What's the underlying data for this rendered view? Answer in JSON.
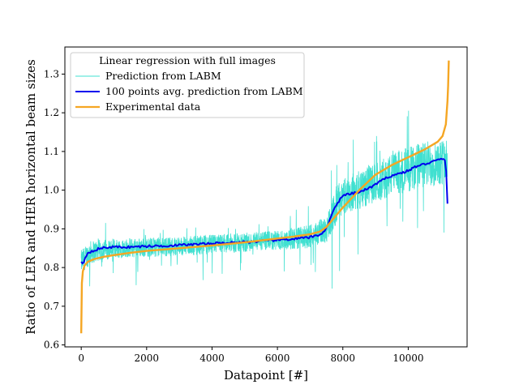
{
  "chart_data": {
    "type": "line",
    "title": "",
    "xlabel": "Datapoint [#]",
    "ylabel": "Ratio of LER and HER horizontal beam sizes",
    "xlim": [
      -500,
      11800
    ],
    "ylim": [
      0.595,
      1.37
    ],
    "xticks": [
      0,
      2000,
      4000,
      6000,
      8000,
      10000
    ],
    "xtick_labels": [
      "0",
      "2000",
      "4000",
      "6000",
      "8000",
      "10000"
    ],
    "yticks": [
      0.6,
      0.7,
      0.8,
      0.9,
      1.0,
      1.1,
      1.2,
      1.3
    ],
    "ytick_labels": [
      "0.6",
      "0.7",
      "0.8",
      "0.9",
      "1.0",
      "1.1",
      "1.2",
      "1.3"
    ],
    "grid": false,
    "legend": {
      "title": "Linear regression with full images",
      "position": "top-left"
    },
    "series": [
      {
        "name": "Prediction from LABM",
        "color": "#40e0d0",
        "style": "noisy-thin",
        "n_points": 11250,
        "x": [
          0,
          300,
          1000,
          2000,
          3000,
          4000,
          5000,
          6000,
          7000,
          7500,
          7800,
          8000,
          8500,
          9000,
          9500,
          10000,
          10500,
          11000,
          11200
        ],
        "y": [
          0.815,
          0.84,
          0.85,
          0.852,
          0.855,
          0.86,
          0.865,
          0.87,
          0.88,
          0.9,
          0.96,
          0.985,
          1.0,
          1.02,
          1.04,
          1.055,
          1.065,
          1.075,
          1.07
        ],
        "spread": [
          0.03,
          0.03,
          0.025,
          0.025,
          0.025,
          0.025,
          0.025,
          0.025,
          0.03,
          0.035,
          0.05,
          0.05,
          0.05,
          0.05,
          0.055,
          0.06,
          0.06,
          0.06,
          0.06
        ]
      },
      {
        "name": "100 points avg. prediction from LABM",
        "color": "#0000ee",
        "style": "line",
        "x": [
          0,
          60,
          120,
          200,
          400,
          600,
          800,
          1000,
          1500,
          2000,
          2500,
          3000,
          3500,
          4000,
          4500,
          5000,
          5500,
          6000,
          6500,
          7000,
          7300,
          7500,
          7600,
          7700,
          7800,
          7900,
          8000,
          8200,
          8400,
          8600,
          8800,
          9000,
          9200,
          9400,
          9600,
          9800,
          10000,
          10200,
          10400,
          10600,
          10800,
          11000,
          11100,
          11150,
          11200
        ],
        "y": [
          0.815,
          0.808,
          0.825,
          0.838,
          0.845,
          0.85,
          0.852,
          0.853,
          0.853,
          0.855,
          0.856,
          0.858,
          0.86,
          0.862,
          0.864,
          0.866,
          0.868,
          0.871,
          0.874,
          0.878,
          0.885,
          0.9,
          0.925,
          0.945,
          0.96,
          0.975,
          0.985,
          0.99,
          0.993,
          0.998,
          1.005,
          1.015,
          1.025,
          1.035,
          1.04,
          1.045,
          1.05,
          1.06,
          1.065,
          1.07,
          1.075,
          1.08,
          1.082,
          1.07,
          0.965
        ]
      },
      {
        "name": "Experimental data",
        "color": "#f5a623",
        "style": "line",
        "x": [
          0,
          20,
          50,
          100,
          200,
          400,
          700,
          1000,
          1500,
          2000,
          3000,
          4000,
          5000,
          6000,
          6500,
          7000,
          7300,
          7500,
          7700,
          8000,
          8500,
          9000,
          9500,
          10000,
          10500,
          10900,
          11050,
          11150,
          11200,
          11220,
          11240
        ],
        "y": [
          0.63,
          0.76,
          0.79,
          0.805,
          0.815,
          0.822,
          0.828,
          0.832,
          0.838,
          0.843,
          0.85,
          0.857,
          0.865,
          0.875,
          0.88,
          0.886,
          0.893,
          0.905,
          0.925,
          0.955,
          1.0,
          1.04,
          1.065,
          1.085,
          1.105,
          1.125,
          1.14,
          1.17,
          1.23,
          1.27,
          1.335
        ]
      }
    ]
  }
}
